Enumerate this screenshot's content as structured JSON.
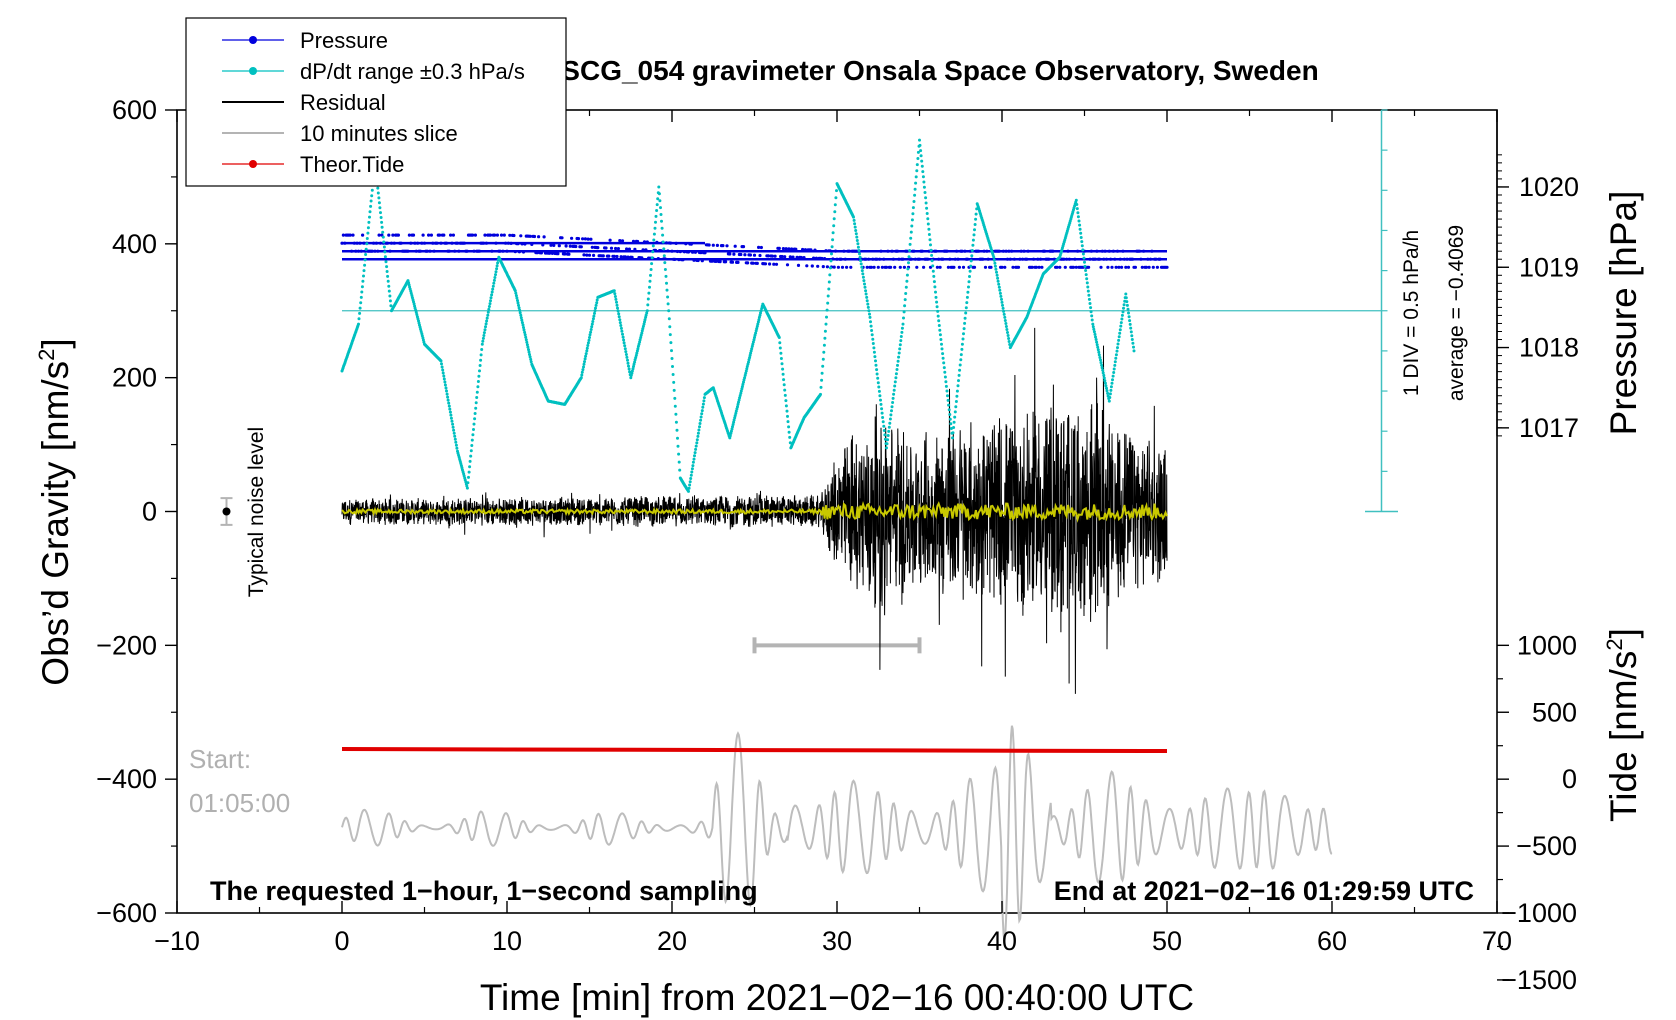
{
  "chart_data": {
    "type": "line",
    "title": "SCG_054 gravimeter Onsala Space Observatory, Sweden",
    "xlabel": "Time [min] from 2021−02−16 00:40:00 UTC",
    "xlim": [
      -10,
      70
    ],
    "x_ticks": [
      -10,
      0,
      10,
      20,
      30,
      40,
      50,
      60,
      70
    ],
    "x_tick_labels": [
      "−10",
      "0",
      "10",
      "20",
      "30",
      "40",
      "50",
      "60",
      "70"
    ],
    "ylabel_left": "Obs’d Gravity [nm/s²]",
    "ylabel_left_main": "Obs’d Gravity [nm/s",
    "ylabel_left_sup": "2",
    "ylabel_left_end": "]",
    "ylim_left": [
      -600,
      600
    ],
    "y_ticks_left": [
      -600,
      -400,
      -200,
      0,
      200,
      400,
      600
    ],
    "y_tick_labels_left": [
      "−600",
      "−400",
      "−200",
      "0",
      "200",
      "400",
      "600"
    ],
    "ylabel_pressure": "Pressure [hPa]",
    "pressure_ticks": [
      1017,
      1018,
      1019,
      1020
    ],
    "ylabel_tide": "Tide [nm/s²]",
    "ylabel_tide_main": "Tide [nm/s",
    "ylabel_tide_sup": "2",
    "ylabel_tide_end": "]",
    "tide_ticks": [
      1000,
      500,
      0,
      -500,
      -1000,
      -1500
    ],
    "tide_tick_labels": [
      "1000",
      "500",
      "0",
      "−500",
      "−1000",
      "−1500"
    ],
    "legend": [
      {
        "name": "Pressure",
        "color": "#0000dd",
        "style": "dot-line"
      },
      {
        "name": "dP/dt range ±0.3 hPa/s",
        "color": "#00c0c0",
        "style": "dot-line"
      },
      {
        "name": "Residual",
        "color": "#000000",
        "style": "line"
      },
      {
        "name": "10 minutes slice",
        "color": "#b4b4b4",
        "style": "line"
      },
      {
        "name": "Theor.Tide",
        "color": "#e00000",
        "style": "dot-line"
      }
    ],
    "legend_position": "top-left",
    "annotations": {
      "noise_label": "Typical noise level",
      "noise_marker": {
        "x": -7,
        "y": 0,
        "err": 20
      },
      "scale_div": "1 DIV = 0.5 hPa/h",
      "scale_avg": "average = −0.4069",
      "start_label": "Start:",
      "start_time": "01:05:00",
      "bottom_left": "The requested 1−hour, 1−second sampling",
      "bottom_right": "End at 2021−02−16 01:29:59 UTC",
      "slice_range_min": [
        25,
        35
      ]
    },
    "series": [
      {
        "name": "Pressure",
        "unit": "hPa",
        "x": [
          0,
          10,
          20,
          30,
          40,
          50
        ],
        "values": [
          1019.3,
          1019.3,
          1019.2,
          1019.1,
          1019.1,
          1019.1
        ]
      },
      {
        "name": "dP/dt",
        "unit": "nm/s² (plot scale)",
        "x": [
          0,
          1,
          2,
          3,
          4,
          5,
          6,
          7,
          7.6,
          8.5,
          9.5,
          10.5,
          11.5,
          12.5,
          13.5,
          14.5,
          15.5,
          16.5,
          17.5,
          18.5,
          19.2,
          19.8,
          20.5,
          21,
          22,
          22.5,
          23.5,
          24.5,
          25.5,
          26.5,
          27.2,
          28,
          29,
          30,
          31,
          32,
          33,
          34,
          35,
          36,
          37,
          38.5,
          39.5,
          40.5,
          41.5,
          42.5,
          43.5,
          44.5,
          45.5,
          46.5,
          47.5,
          48
        ],
        "values": [
          210,
          280,
          520,
          300,
          345,
          250,
          225,
          90,
          35,
          250,
          380,
          330,
          220,
          165,
          160,
          200,
          320,
          330,
          200,
          300,
          485,
          300,
          50,
          30,
          175,
          185,
          110,
          210,
          310,
          260,
          95,
          140,
          175,
          490,
          440,
          290,
          95,
          280,
          555,
          320,
          110,
          460,
          380,
          245,
          290,
          355,
          380,
          465,
          280,
          165,
          325,
          240
        ]
      },
      {
        "name": "Residual",
        "unit": "nm/s²",
        "x": [
          0,
          29,
          30,
          32,
          35,
          45,
          50
        ],
        "amplitude": [
          20,
          25,
          100,
          150,
          120,
          180,
          100
        ]
      },
      {
        "name": "Residual (smoothed)",
        "unit": "nm/s²",
        "x": [
          0,
          50
        ],
        "values": [
          0,
          0
        ]
      },
      {
        "name": "10 minutes slice",
        "unit": "nm/s² (tide axis)",
        "x": [
          0,
          60
        ],
        "values": [
          -360,
          -380
        ]
      },
      {
        "name": "Theor.Tide",
        "unit": "nm/s² (plot scale)",
        "x": [
          0,
          50
        ],
        "values": [
          -355,
          -358
        ]
      }
    ]
  }
}
